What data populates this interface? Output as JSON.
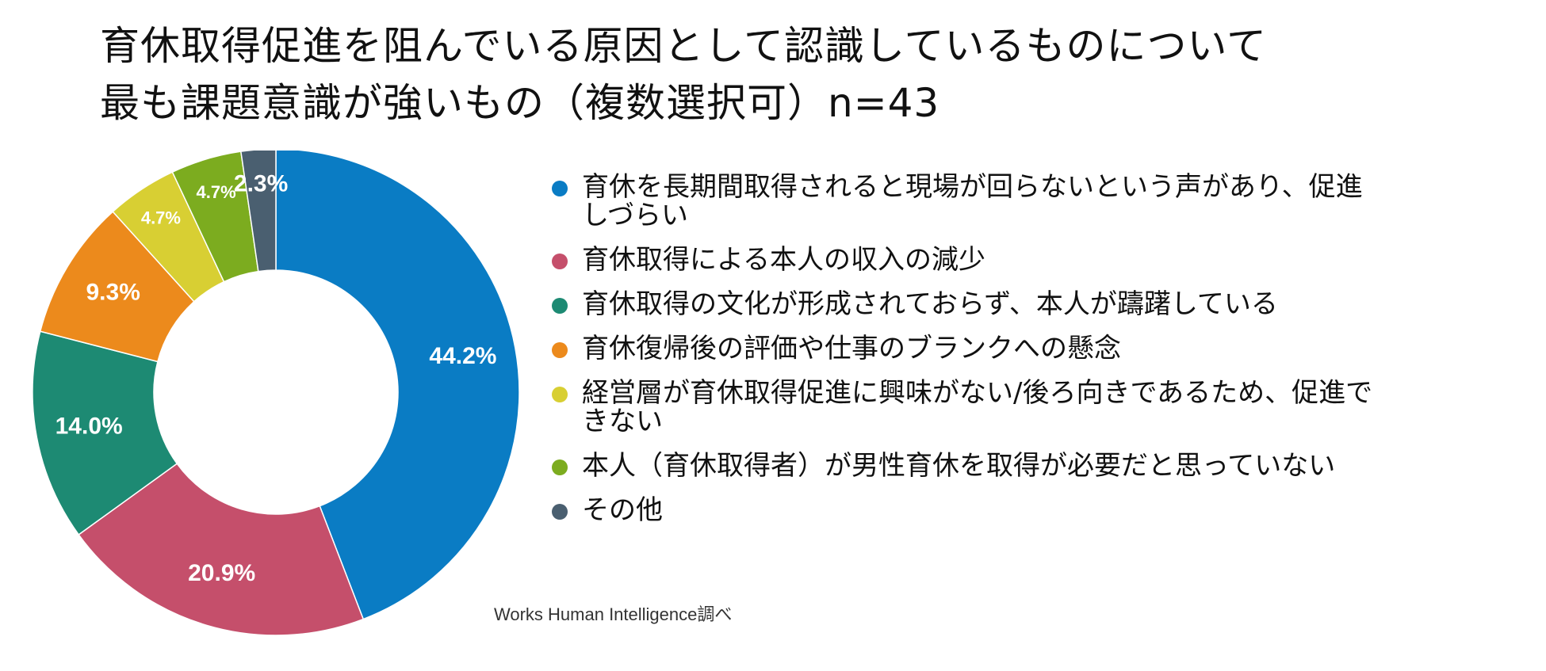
{
  "title": {
    "line1": "育休取得促進を阻んでいる原因として認識しているものについて",
    "line2": "最も課題意識が強いもの（複数選択可）n=43"
  },
  "chart_data": {
    "type": "pie",
    "donut": true,
    "unit": "%",
    "categories": [
      "育休を長期間取得されると現場が回らないという声があり、促進しづらい",
      "育休取得による本人の収入の減少",
      "育休取得の文化が形成されておらず、本人が躊躇している",
      "育休復帰後の評価や仕事のブランクへの懸念",
      "経営層が育休取得促進に興味がない/後ろ向きであるため、促進できない",
      "本人（育休取得者）が男性育休を取得が必要だと思っていない",
      "その他"
    ],
    "values": [
      44.2,
      20.9,
      14.0,
      9.3,
      4.7,
      4.7,
      2.3
    ],
    "value_labels": [
      "44.2%",
      "20.9%",
      "14.0%",
      "9.3%",
      "4.7%",
      "4.7%",
      "2.3%"
    ],
    "colors": [
      "#0a7cc4",
      "#c54f6b",
      "#1d8a73",
      "#ec8a1c",
      "#d8cf33",
      "#7cac1f",
      "#4a5f70"
    ],
    "legend_placement": "right"
  },
  "source": "Works Human Intelligence調べ"
}
